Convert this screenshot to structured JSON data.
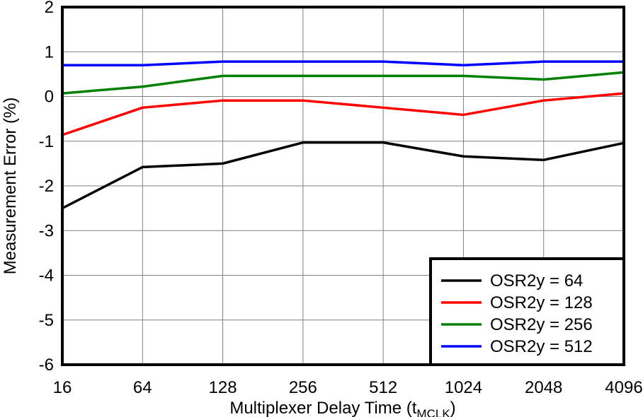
{
  "chart_data": {
    "type": "line",
    "title": "",
    "xlabel": "Multiplexer Delay Time (t",
    "xlabel_subscript": "MCLK",
    "xlabel_suffix": ")",
    "ylabel": "Measurement Error (%)",
    "categories": [
      "16",
      "64",
      "128",
      "256",
      "512",
      "1024",
      "2048",
      "4096"
    ],
    "ylim": [
      -6,
      2
    ],
    "yticks": [
      "2",
      "1",
      "0",
      "-1",
      "-2",
      "-3",
      "-4",
      "-5",
      "-6"
    ],
    "grid": true,
    "legend_position": "bottom-right",
    "series": [
      {
        "name": "OSR2y = 64",
        "color": "#000000",
        "values": [
          -2.5,
          -1.58,
          -1.5,
          -1.03,
          -1.03,
          -1.34,
          -1.42,
          -1.04
        ]
      },
      {
        "name": "OSR2y = 128",
        "color": "#ff0000",
        "values": [
          -0.86,
          -0.25,
          -0.09,
          -0.09,
          -0.25,
          -0.41,
          -0.09,
          0.07
        ]
      },
      {
        "name": "OSR2y = 256",
        "color": "#008000",
        "values": [
          0.07,
          0.22,
          0.46,
          0.46,
          0.46,
          0.46,
          0.38,
          0.54
        ]
      },
      {
        "name": "OSR2y = 512",
        "color": "#0000ff",
        "values": [
          0.7,
          0.7,
          0.78,
          0.78,
          0.78,
          0.7,
          0.78,
          0.78
        ]
      }
    ]
  }
}
